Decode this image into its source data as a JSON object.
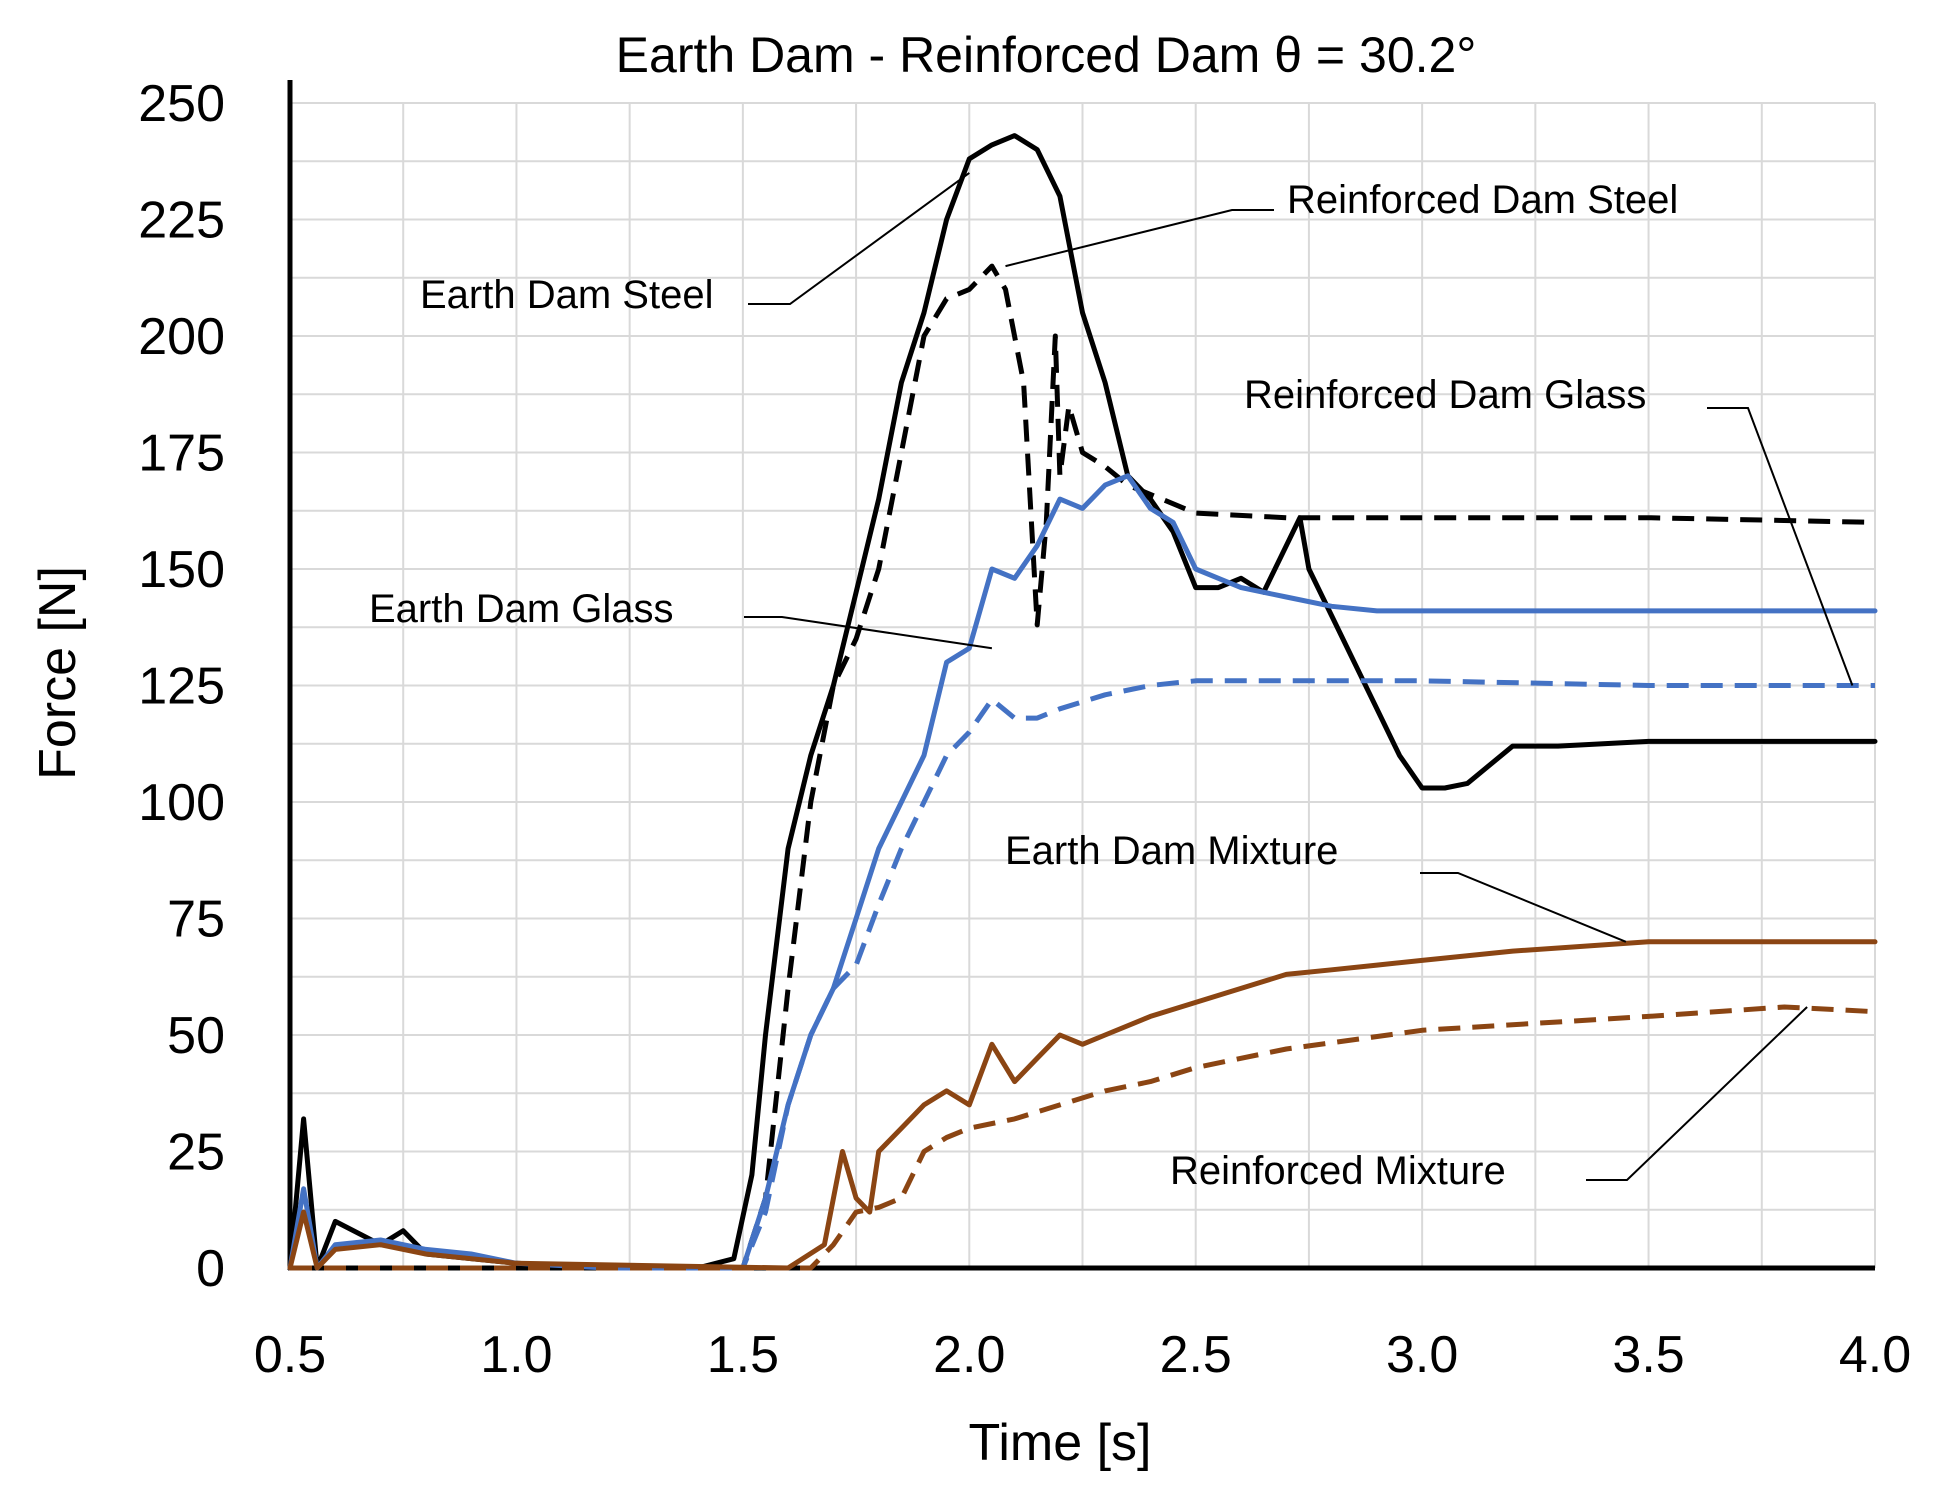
{
  "chart_data": {
    "type": "line",
    "title": "Earth Dam - Reinforced Dam θ =  30.2°",
    "xlabel": "Time [s]",
    "ylabel": "Force [N]",
    "xlim": [
      0.5,
      4.0
    ],
    "ylim": [
      0,
      250
    ],
    "x_ticks": [
      "0.5",
      "1.0",
      "1.5",
      "2.0",
      "2.5",
      "3.0",
      "3.5",
      "4.0"
    ],
    "y_ticks": [
      "0",
      "25",
      "50",
      "75",
      "100",
      "125",
      "150",
      "175",
      "200",
      "225",
      "250"
    ],
    "grid": true,
    "series": [
      {
        "name": "Earth Dam Steel",
        "color": "#000000",
        "dash": "solid",
        "x": [
          0.5,
          0.53,
          0.56,
          0.6,
          0.7,
          0.75,
          0.8,
          0.9,
          1.0,
          1.2,
          1.4,
          1.48,
          1.52,
          1.55,
          1.6,
          1.65,
          1.7,
          1.75,
          1.8,
          1.85,
          1.9,
          1.95,
          2.0,
          2.05,
          2.1,
          2.15,
          2.2,
          2.25,
          2.3,
          2.35,
          2.4,
          2.45,
          2.5,
          2.55,
          2.6,
          2.65,
          2.7,
          2.73,
          2.75,
          2.8,
          2.85,
          2.9,
          2.95,
          3.0,
          3.05,
          3.1,
          3.15,
          3.2,
          3.3,
          3.5,
          3.7,
          4.0
        ],
        "y": [
          0,
          32,
          0,
          10,
          5,
          8,
          3,
          2,
          1,
          0,
          0,
          2,
          20,
          50,
          90,
          110,
          125,
          145,
          165,
          190,
          205,
          225,
          238,
          241,
          243,
          240,
          230,
          205,
          190,
          170,
          165,
          158,
          146,
          146,
          148,
          145,
          155,
          161,
          150,
          140,
          130,
          120,
          110,
          103,
          103,
          104,
          108,
          112,
          112,
          113,
          113,
          113
        ]
      },
      {
        "name": "Reinforced Dam Steel",
        "color": "#000000",
        "dash": "dashed",
        "x": [
          0.5,
          1.5,
          1.55,
          1.6,
          1.65,
          1.7,
          1.75,
          1.8,
          1.85,
          1.9,
          1.95,
          2.0,
          2.05,
          2.08,
          2.12,
          2.15,
          2.17,
          2.19,
          2.2,
          2.22,
          2.25,
          2.3,
          2.35,
          2.4,
          2.5,
          2.7,
          3.0,
          3.5,
          4.0
        ],
        "y": [
          0,
          0,
          15,
          60,
          100,
          125,
          135,
          150,
          175,
          200,
          208,
          210,
          215,
          210,
          190,
          138,
          160,
          200,
          170,
          185,
          175,
          172,
          168,
          166,
          162,
          161,
          161,
          161,
          160
        ]
      },
      {
        "name": "Earth Dam Glass",
        "color": "#4472c4",
        "dash": "solid",
        "x": [
          0.5,
          0.53,
          0.56,
          0.6,
          0.7,
          0.8,
          0.9,
          1.0,
          1.2,
          1.5,
          1.55,
          1.6,
          1.65,
          1.7,
          1.75,
          1.8,
          1.85,
          1.9,
          1.95,
          2.0,
          2.05,
          2.1,
          2.15,
          2.2,
          2.25,
          2.3,
          2.35,
          2.4,
          2.45,
          2.5,
          2.55,
          2.6,
          2.7,
          2.8,
          2.9,
          3.0,
          3.5,
          4.0
        ],
        "y": [
          0,
          17,
          0,
          5,
          6,
          4,
          3,
          1,
          0,
          0,
          15,
          35,
          50,
          60,
          75,
          90,
          100,
          110,
          130,
          133,
          150,
          148,
          155,
          165,
          163,
          168,
          170,
          163,
          160,
          150,
          148,
          146,
          144,
          142,
          141,
          141,
          141,
          141
        ]
      },
      {
        "name": "Reinforced Dam Glass",
        "color": "#4472c4",
        "dash": "dashed",
        "x": [
          0.5,
          1.5,
          1.55,
          1.6,
          1.65,
          1.7,
          1.75,
          1.8,
          1.85,
          1.9,
          1.95,
          2.0,
          2.05,
          2.1,
          2.15,
          2.2,
          2.3,
          2.4,
          2.5,
          2.6,
          2.7,
          3.0,
          3.5,
          4.0
        ],
        "y": [
          0,
          0,
          12,
          35,
          50,
          60,
          65,
          78,
          90,
          100,
          110,
          115,
          122,
          118,
          118,
          120,
          123,
          125,
          126,
          126,
          126,
          126,
          125,
          125
        ]
      },
      {
        "name": "Earth Dam Mixture",
        "color": "#8b4513",
        "dash": "solid",
        "x": [
          0.5,
          0.53,
          0.56,
          0.6,
          0.7,
          0.8,
          0.9,
          1.0,
          1.6,
          1.68,
          1.72,
          1.75,
          1.78,
          1.8,
          1.85,
          1.9,
          1.95,
          2.0,
          2.05,
          2.1,
          2.15,
          2.2,
          2.25,
          2.3,
          2.4,
          2.5,
          2.6,
          2.7,
          2.8,
          2.9,
          3.0,
          3.2,
          3.5,
          3.8,
          4.0
        ],
        "y": [
          0,
          12,
          0,
          4,
          5,
          3,
          2,
          1,
          0,
          5,
          25,
          15,
          12,
          25,
          30,
          35,
          38,
          35,
          48,
          40,
          45,
          50,
          48,
          50,
          54,
          57,
          60,
          63,
          64,
          65,
          66,
          68,
          70,
          70,
          70
        ]
      },
      {
        "name": "Reinforced Mixture",
        "color": "#8b4513",
        "dash": "dashed",
        "x": [
          0.5,
          1.65,
          1.7,
          1.75,
          1.8,
          1.85,
          1.9,
          1.95,
          2.0,
          2.1,
          2.2,
          2.3,
          2.4,
          2.5,
          2.7,
          3.0,
          3.5,
          3.8,
          4.0
        ],
        "y": [
          0,
          0,
          5,
          12,
          13,
          15,
          25,
          28,
          30,
          32,
          35,
          38,
          40,
          43,
          47,
          51,
          54,
          56,
          55
        ]
      }
    ],
    "annotations": [
      {
        "text": "Earth Dam Steel",
        "x": 2.0,
        "y": 235
      },
      {
        "text": "Reinforced Dam Steel",
        "x": 2.08,
        "y": 215
      },
      {
        "text": "Reinforced Dam Glass",
        "x": 3.95,
        "y": 125
      },
      {
        "text": "Earth Dam Glass",
        "x": 2.05,
        "y": 133
      },
      {
        "text": "Earth Dam Mixture",
        "x": 3.45,
        "y": 70
      },
      {
        "text": "Reinforced Mixture",
        "x": 3.85,
        "y": 56
      }
    ]
  }
}
